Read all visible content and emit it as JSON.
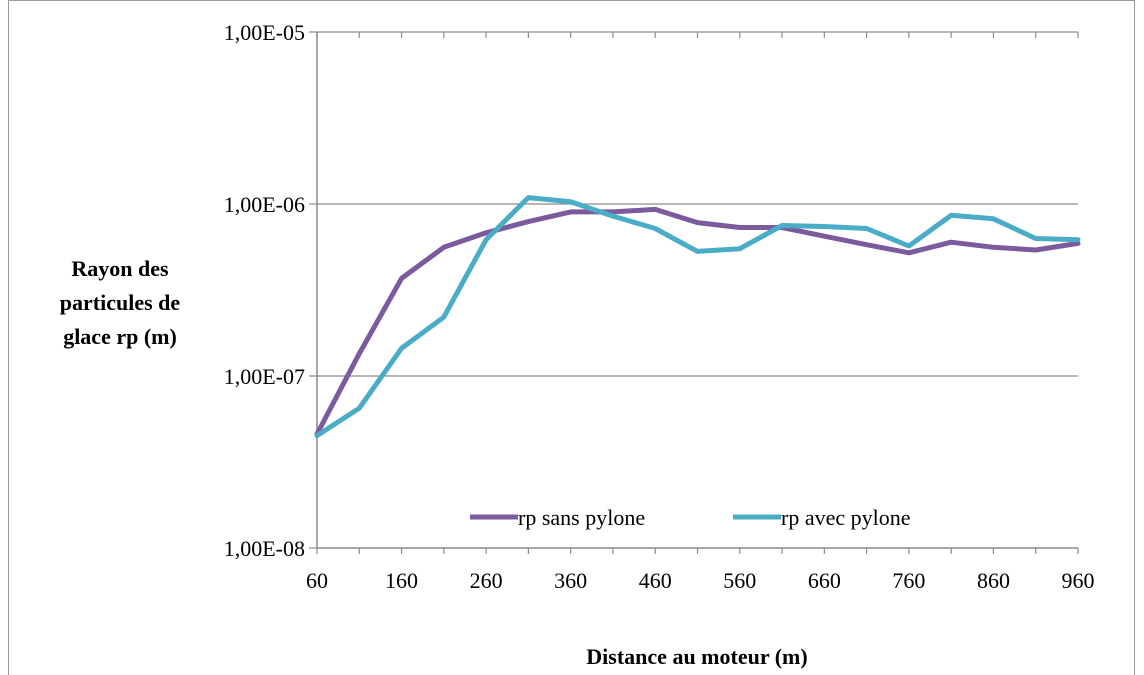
{
  "chart_data": {
    "type": "line",
    "xlabel": "Distance au moteur (m)",
    "ylabel": [
      "Rayon des",
      "particules de",
      "glace rp (m)"
    ],
    "x_ticks": [
      "60",
      "160",
      "260",
      "360",
      "460",
      "560",
      "660",
      "760",
      "860",
      "960"
    ],
    "y_ticks": [
      "1,00E-08",
      "1,00E-07",
      "1,00E-06",
      "1,00E-05"
    ],
    "y_scale": "log",
    "xlim": [
      60,
      960
    ],
    "ylim": [
      1e-08,
      1e-05
    ],
    "grid": "horizontal",
    "legend_position": "bottom-right",
    "x": [
      60,
      110,
      160,
      210,
      260,
      310,
      360,
      410,
      460,
      510,
      560,
      610,
      660,
      710,
      760,
      810,
      860,
      910,
      960
    ],
    "series": [
      {
        "name": "rp sans pylone",
        "color": "#7b5a9e",
        "values": [
          4.6e-08,
          1.35e-07,
          3.7e-07,
          5.6e-07,
          6.8e-07,
          7.9e-07,
          9e-07,
          9e-07,
          9.3e-07,
          7.8e-07,
          7.3e-07,
          7.3e-07,
          6.5e-07,
          5.8e-07,
          5.2e-07,
          6e-07,
          5.6e-07,
          5.4e-07,
          5.9e-07
        ]
      },
      {
        "name": "rp avec pylone",
        "color": "#4aacc6",
        "values": [
          4.5e-08,
          6.5e-08,
          1.45e-07,
          2.2e-07,
          6.2e-07,
          1.09e-06,
          1.03e-06,
          8.5e-07,
          7.2e-07,
          5.3e-07,
          5.5e-07,
          7.5e-07,
          7.4e-07,
          7.2e-07,
          5.7e-07,
          8.6e-07,
          8.2e-07,
          6.3e-07,
          6.2e-07
        ]
      }
    ]
  }
}
